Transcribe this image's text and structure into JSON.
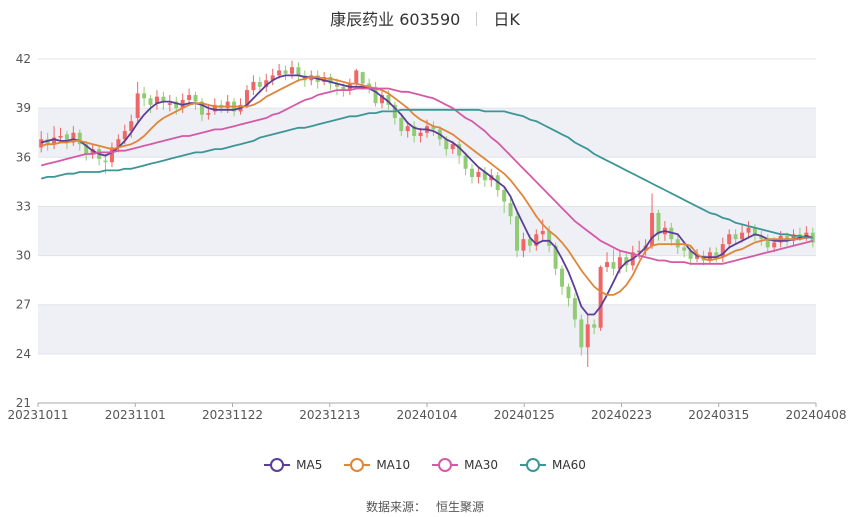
{
  "title": {
    "stock": "康辰药业 603590",
    "period": "日K"
  },
  "source": {
    "label": "数据来源：",
    "name": "恒生聚源"
  },
  "colors": {
    "up": "#ee6666",
    "down": "#91cc75",
    "MA5": "#5b3e97",
    "MA10": "#e0863a",
    "MA30": "#d45aa8",
    "MA60": "#3c9696",
    "grid_band": "#eef0f5"
  },
  "chart_data": {
    "type": "candlestick",
    "ylim": [
      21,
      42
    ],
    "yticks": [
      21,
      24,
      27,
      30,
      33,
      36,
      39,
      42
    ],
    "xlabels": [
      "20231011",
      "20231101",
      "20231122",
      "20231213",
      "20240104",
      "20240125",
      "20240223",
      "20240315",
      "20240408"
    ],
    "legend": [
      "MA5",
      "MA10",
      "MA30",
      "MA60"
    ],
    "legend_position": "bottom",
    "n_days": 121,
    "candles": [
      [
        36.6,
        37.1,
        37.6,
        36.3
      ],
      [
        37.1,
        36.8,
        37.5,
        36.4
      ],
      [
        36.8,
        37.2,
        37.9,
        36.5
      ],
      [
        37.2,
        37.3,
        37.8,
        36.9
      ],
      [
        37.4,
        36.9,
        37.6,
        36.5
      ],
      [
        36.9,
        37.5,
        37.9,
        36.7
      ],
      [
        37.5,
        36.8,
        37.7,
        36.4
      ],
      [
        36.8,
        36.2,
        37.0,
        35.8
      ],
      [
        36.2,
        36.5,
        36.8,
        35.9
      ],
      [
        36.5,
        35.9,
        36.7,
        35.5
      ],
      [
        35.8,
        35.7,
        36.2,
        35.0
      ],
      [
        35.7,
        36.6,
        36.9,
        35.4
      ],
      [
        36.6,
        37.1,
        37.4,
        36.3
      ],
      [
        37.1,
        37.6,
        38.0,
        36.8
      ],
      [
        37.6,
        38.2,
        38.6,
        37.2
      ],
      [
        38.4,
        39.9,
        40.6,
        38.0
      ],
      [
        39.9,
        39.6,
        40.3,
        39.1
      ],
      [
        39.6,
        39.2,
        39.8,
        38.7
      ],
      [
        39.3,
        39.7,
        40.1,
        38.9
      ],
      [
        39.7,
        39.4,
        40.0,
        38.9
      ],
      [
        39.2,
        39.3,
        39.8,
        38.8
      ],
      [
        39.4,
        39.0,
        39.7,
        38.6
      ],
      [
        39.0,
        39.5,
        39.9,
        38.7
      ],
      [
        39.5,
        39.8,
        40.2,
        39.2
      ],
      [
        39.8,
        39.4,
        40.0,
        38.9
      ],
      [
        39.4,
        38.6,
        39.6,
        38.2
      ],
      [
        38.6,
        38.7,
        39.2,
        38.3
      ],
      [
        38.8,
        39.2,
        39.6,
        38.6
      ],
      [
        39.2,
        39.0,
        39.5,
        38.7
      ],
      [
        39.0,
        39.4,
        39.8,
        38.7
      ],
      [
        39.4,
        38.8,
        39.6,
        38.5
      ],
      [
        38.8,
        39.2,
        39.6,
        38.6
      ],
      [
        39.2,
        40.1,
        40.4,
        39.0
      ],
      [
        40.1,
        40.6,
        41.0,
        39.8
      ],
      [
        40.6,
        40.3,
        40.9,
        39.9
      ],
      [
        40.3,
        40.7,
        41.1,
        40.0
      ],
      [
        40.7,
        41.0,
        41.4,
        40.4
      ],
      [
        41.0,
        41.3,
        41.7,
        40.8
      ],
      [
        41.3,
        41.1,
        41.6,
        40.7
      ],
      [
        41.1,
        41.5,
        41.9,
        40.8
      ],
      [
        41.5,
        41.0,
        41.8,
        40.6
      ],
      [
        41.0,
        40.7,
        41.3,
        40.3
      ],
      [
        40.7,
        41.0,
        41.3,
        40.4
      ],
      [
        41.0,
        40.6,
        41.3,
        40.2
      ],
      [
        40.6,
        40.9,
        41.2,
        40.4
      ],
      [
        40.9,
        40.5,
        41.1,
        40.1
      ],
      [
        40.5,
        40.3,
        40.8,
        39.8
      ],
      [
        40.3,
        40.1,
        40.5,
        39.7
      ],
      [
        40.1,
        40.5,
        40.8,
        39.8
      ],
      [
        40.5,
        41.3,
        41.4,
        40.3
      ],
      [
        41.2,
        40.5,
        41.2,
        40.1
      ],
      [
        40.5,
        40.3,
        40.8,
        39.9
      ],
      [
        40.3,
        39.3,
        40.6,
        39.1
      ],
      [
        39.3,
        39.8,
        40.2,
        39.0
      ],
      [
        39.8,
        39.2,
        40.1,
        38.9
      ],
      [
        39.2,
        38.4,
        39.4,
        38.0
      ],
      [
        38.4,
        37.6,
        38.7,
        37.3
      ],
      [
        37.6,
        37.9,
        38.2,
        37.2
      ],
      [
        37.9,
        37.3,
        38.2,
        36.9
      ],
      [
        37.3,
        37.5,
        37.8,
        36.9
      ],
      [
        37.5,
        37.9,
        38.3,
        37.2
      ],
      [
        37.9,
        37.7,
        38.2,
        37.3
      ],
      [
        37.7,
        37.1,
        37.9,
        36.7
      ],
      [
        37.1,
        36.5,
        37.3,
        36.1
      ],
      [
        36.5,
        36.8,
        37.0,
        36.2
      ],
      [
        36.8,
        36.1,
        37.0,
        35.6
      ],
      [
        36.1,
        35.3,
        36.3,
        34.9
      ],
      [
        35.3,
        34.8,
        35.6,
        34.4
      ],
      [
        34.8,
        35.1,
        35.4,
        34.4
      ],
      [
        35.1,
        34.6,
        35.4,
        34.2
      ],
      [
        34.6,
        34.9,
        35.3,
        34.2
      ],
      [
        34.9,
        34.0,
        35.1,
        33.6
      ],
      [
        34.0,
        33.3,
        34.2,
        32.6
      ],
      [
        33.2,
        32.4,
        33.5,
        31.9
      ],
      [
        32.4,
        30.3,
        32.6,
        29.9
      ],
      [
        30.3,
        31.0,
        31.4,
        29.9
      ],
      [
        31.0,
        30.6,
        31.3,
        30.2
      ],
      [
        30.6,
        31.3,
        31.6,
        30.3
      ],
      [
        31.3,
        31.5,
        32.2,
        30.9
      ],
      [
        31.5,
        30.6,
        31.8,
        30.2
      ],
      [
        30.6,
        29.2,
        30.8,
        28.8
      ],
      [
        29.2,
        28.1,
        29.4,
        27.6
      ],
      [
        28.1,
        27.4,
        28.3,
        26.9
      ],
      [
        27.4,
        26.1,
        27.7,
        25.6
      ],
      [
        26.1,
        24.4,
        26.4,
        23.9
      ],
      [
        24.4,
        25.8,
        26.4,
        23.2
      ],
      [
        25.8,
        25.6,
        26.1,
        25.2
      ],
      [
        25.6,
        29.3,
        29.4,
        25.4
      ],
      [
        29.3,
        29.6,
        30.2,
        29.0
      ],
      [
        29.6,
        29.2,
        30.4,
        28.8
      ],
      [
        29.2,
        29.9,
        30.3,
        28.9
      ],
      [
        29.9,
        29.4,
        30.2,
        29.0
      ],
      [
        29.4,
        30.2,
        30.6,
        29.1
      ],
      [
        30.2,
        30.3,
        30.9,
        29.8
      ],
      [
        30.3,
        30.6,
        31.0,
        30.0
      ],
      [
        30.6,
        32.6,
        33.8,
        30.4
      ],
      [
        32.6,
        31.3,
        32.8,
        30.9
      ],
      [
        31.3,
        31.7,
        32.1,
        30.9
      ],
      [
        31.7,
        31.0,
        32.0,
        30.6
      ],
      [
        31.0,
        30.5,
        31.3,
        30.1
      ],
      [
        30.5,
        30.3,
        30.8,
        29.9
      ],
      [
        30.3,
        29.8,
        30.6,
        29.4
      ],
      [
        29.8,
        30.0,
        30.4,
        29.6
      ],
      [
        30.0,
        29.7,
        30.3,
        29.4
      ],
      [
        29.7,
        30.2,
        30.5,
        29.5
      ],
      [
        30.2,
        29.9,
        30.5,
        29.6
      ],
      [
        29.9,
        30.7,
        31.1,
        29.6
      ],
      [
        30.7,
        31.3,
        31.6,
        30.4
      ],
      [
        31.3,
        31.0,
        31.6,
        30.7
      ],
      [
        31.0,
        31.4,
        31.9,
        30.8
      ],
      [
        31.4,
        31.7,
        32.1,
        31.1
      ],
      [
        31.7,
        31.2,
        31.9,
        30.9
      ],
      [
        31.2,
        31.0,
        31.5,
        30.6
      ],
      [
        31.0,
        30.5,
        31.3,
        30.2
      ],
      [
        30.5,
        30.8,
        31.1,
        30.2
      ],
      [
        30.8,
        31.2,
        31.5,
        30.5
      ],
      [
        31.2,
        30.9,
        31.4,
        30.6
      ],
      [
        30.9,
        31.3,
        31.6,
        30.6
      ],
      [
        31.3,
        31.2,
        31.7,
        30.9
      ],
      [
        31.2,
        31.4,
        31.8,
        30.9
      ],
      [
        31.4,
        30.8,
        31.7,
        30.5
      ]
    ],
    "series": [
      {
        "name": "MA5",
        "values": [
          36.9,
          37.0,
          37.1,
          37.0,
          37.0,
          37.1,
          37.0,
          36.7,
          36.4,
          36.2,
          36.1,
          36.3,
          36.6,
          37.0,
          37.5,
          38.1,
          38.6,
          39.0,
          39.3,
          39.4,
          39.4,
          39.3,
          39.2,
          39.3,
          39.3,
          39.2,
          39.0,
          38.9,
          38.9,
          38.9,
          38.9,
          39.0,
          39.2,
          39.6,
          40.0,
          40.4,
          40.7,
          40.9,
          41.0,
          41.0,
          41.0,
          40.9,
          40.9,
          40.8,
          40.7,
          40.6,
          40.5,
          40.4,
          40.3,
          40.3,
          40.3,
          40.2,
          40.0,
          39.7,
          39.4,
          39.0,
          38.6,
          38.1,
          37.8,
          37.7,
          37.7,
          37.6,
          37.4,
          37.1,
          36.9,
          36.6,
          36.2,
          35.8,
          35.4,
          35.1,
          34.8,
          34.5,
          34.2,
          33.6,
          32.7,
          31.9,
          31.1,
          30.7,
          30.9,
          30.9,
          30.5,
          29.8,
          29.0,
          28.0,
          26.9,
          26.4,
          26.4,
          26.9,
          27.6,
          28.4,
          29.2,
          29.6,
          29.8,
          30.1,
          30.5,
          31.1,
          31.4,
          31.5,
          31.4,
          31.3,
          30.8,
          30.3,
          30.0,
          29.9,
          29.9,
          29.9,
          30.1,
          30.5,
          30.7,
          30.9,
          31.1,
          31.3,
          31.2,
          31.0,
          30.9,
          30.9,
          30.9,
          31.0,
          31.1,
          31.2,
          31.1
        ]
      },
      {
        "name": "MA10",
        "values": [
          36.7,
          36.8,
          36.8,
          36.9,
          36.9,
          37.0,
          37.0,
          36.9,
          36.8,
          36.7,
          36.6,
          36.5,
          36.6,
          36.7,
          36.8,
          37.0,
          37.3,
          37.7,
          38.1,
          38.4,
          38.6,
          38.8,
          39.0,
          39.2,
          39.3,
          39.3,
          39.2,
          39.1,
          39.1,
          39.1,
          39.1,
          39.1,
          39.1,
          39.2,
          39.4,
          39.7,
          39.9,
          40.1,
          40.3,
          40.5,
          40.7,
          40.8,
          40.9,
          40.9,
          40.8,
          40.8,
          40.7,
          40.6,
          40.5,
          40.5,
          40.4,
          40.3,
          40.2,
          40.1,
          39.9,
          39.6,
          39.3,
          39.0,
          38.6,
          38.3,
          38.1,
          37.9,
          37.8,
          37.6,
          37.4,
          37.1,
          36.8,
          36.5,
          36.2,
          35.9,
          35.6,
          35.3,
          35.0,
          34.6,
          34.1,
          33.6,
          33.0,
          32.4,
          31.9,
          31.5,
          31.2,
          30.8,
          30.3,
          29.7,
          29.1,
          28.6,
          28.1,
          27.8,
          27.6,
          27.6,
          27.8,
          28.2,
          28.8,
          29.6,
          30.3,
          30.6,
          30.7,
          30.7,
          30.7,
          30.7,
          30.7,
          30.6,
          30.1,
          29.8,
          29.7,
          29.8,
          29.9,
          30.1,
          30.3,
          30.4,
          30.6,
          30.8,
          30.9,
          31.0,
          31.0,
          31.0,
          31.0,
          31.0,
          31.0,
          31.1,
          31.1
        ]
      },
      {
        "name": "MA30",
        "values": [
          35.5,
          35.6,
          35.7,
          35.8,
          35.9,
          36.0,
          36.1,
          36.2,
          36.2,
          36.3,
          36.3,
          36.3,
          36.4,
          36.4,
          36.5,
          36.6,
          36.7,
          36.8,
          36.9,
          37.0,
          37.1,
          37.2,
          37.3,
          37.3,
          37.4,
          37.5,
          37.6,
          37.7,
          37.7,
          37.8,
          37.9,
          38.0,
          38.1,
          38.2,
          38.3,
          38.4,
          38.6,
          38.7,
          38.9,
          39.1,
          39.3,
          39.5,
          39.6,
          39.8,
          39.9,
          40.0,
          40.1,
          40.1,
          40.1,
          40.2,
          40.2,
          40.2,
          40.2,
          40.2,
          40.2,
          40.1,
          40.0,
          40.0,
          39.9,
          39.8,
          39.7,
          39.6,
          39.4,
          39.2,
          39.0,
          38.7,
          38.4,
          38.2,
          37.9,
          37.6,
          37.2,
          36.9,
          36.5,
          36.1,
          35.7,
          35.3,
          34.9,
          34.5,
          34.1,
          33.7,
          33.3,
          32.9,
          32.5,
          32.1,
          31.8,
          31.5,
          31.2,
          30.9,
          30.7,
          30.5,
          30.3,
          30.2,
          30.1,
          30.0,
          29.9,
          29.8,
          29.7,
          29.7,
          29.6,
          29.6,
          29.6,
          29.5,
          29.5,
          29.5,
          29.5,
          29.5,
          29.5,
          29.6,
          29.7,
          29.8,
          29.9,
          30.0,
          30.1,
          30.2,
          30.3,
          30.4,
          30.5,
          30.6,
          30.7,
          30.8,
          30.9
        ]
      },
      {
        "name": "MA60",
        "values": [
          34.7,
          34.8,
          34.8,
          34.9,
          35.0,
          35.0,
          35.1,
          35.1,
          35.1,
          35.1,
          35.2,
          35.2,
          35.2,
          35.3,
          35.3,
          35.4,
          35.5,
          35.6,
          35.7,
          35.8,
          35.9,
          36.0,
          36.1,
          36.2,
          36.3,
          36.3,
          36.4,
          36.5,
          36.5,
          36.6,
          36.7,
          36.8,
          36.9,
          37.0,
          37.2,
          37.3,
          37.4,
          37.5,
          37.6,
          37.7,
          37.8,
          37.8,
          37.9,
          38.0,
          38.1,
          38.2,
          38.3,
          38.4,
          38.5,
          38.5,
          38.6,
          38.7,
          38.7,
          38.8,
          38.8,
          38.8,
          38.9,
          38.9,
          38.9,
          38.9,
          38.9,
          38.9,
          38.9,
          38.9,
          38.9,
          38.9,
          38.9,
          38.9,
          38.9,
          38.8,
          38.8,
          38.8,
          38.8,
          38.7,
          38.6,
          38.5,
          38.3,
          38.2,
          38.0,
          37.8,
          37.6,
          37.4,
          37.2,
          36.9,
          36.7,
          36.5,
          36.2,
          36.0,
          35.8,
          35.6,
          35.4,
          35.2,
          35.0,
          34.8,
          34.6,
          34.4,
          34.2,
          34.0,
          33.8,
          33.6,
          33.4,
          33.2,
          33.0,
          32.8,
          32.6,
          32.5,
          32.3,
          32.2,
          32.0,
          31.9,
          31.8,
          31.7,
          31.6,
          31.5,
          31.4,
          31.3,
          31.3,
          31.2,
          31.2,
          31.1,
          31.1
        ]
      }
    ]
  }
}
